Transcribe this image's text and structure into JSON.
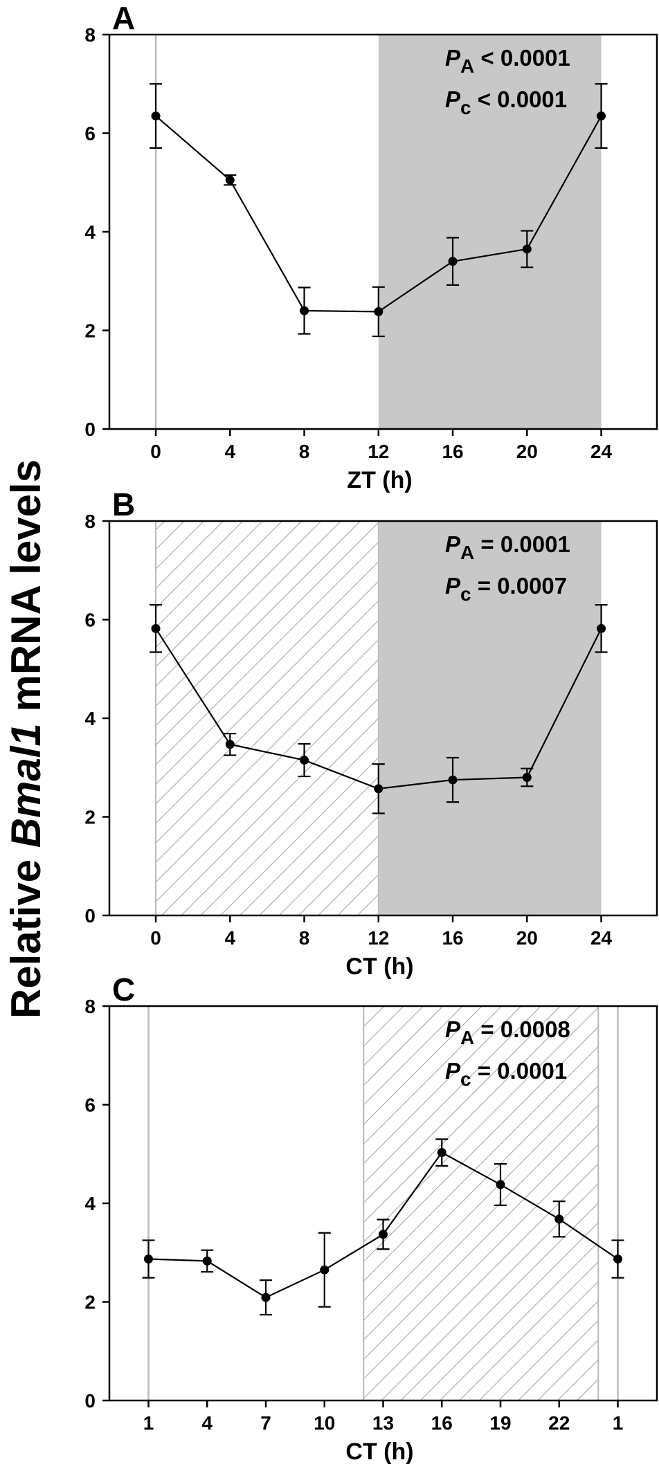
{
  "ylabel": {
    "pre": "Relative ",
    "italic": "Bmal1",
    "post": " mRNA levels"
  },
  "chart_data": [
    {
      "type": "line",
      "panel": "A",
      "xlabel": "ZT (h)",
      "x": [
        0,
        4,
        8,
        12,
        16,
        20,
        24
      ],
      "xtick_labels": [
        "0",
        "4",
        "8",
        "12",
        "16",
        "20",
        "24"
      ],
      "values": [
        6.35,
        5.05,
        2.4,
        2.38,
        3.4,
        3.65,
        6.35
      ],
      "errors": [
        0.65,
        0.1,
        0.47,
        0.5,
        0.48,
        0.37,
        0.65
      ],
      "ylim": [
        0,
        8
      ],
      "yticks": [
        0,
        2,
        4,
        6,
        8
      ],
      "xlim": [
        -2.5,
        27
      ],
      "shading": [
        {
          "from": 12,
          "to": 24,
          "style": "gray"
        }
      ],
      "vlines": [
        0
      ],
      "pvalues": [
        {
          "symbol": "P",
          "sub": "A",
          "text": " < 0.0001"
        },
        {
          "symbol": "P",
          "sub": "c",
          "text": " < 0.0001"
        }
      ]
    },
    {
      "type": "line",
      "panel": "B",
      "xlabel": "CT (h)",
      "x": [
        0,
        4,
        8,
        12,
        16,
        20,
        24
      ],
      "xtick_labels": [
        "0",
        "4",
        "8",
        "12",
        "16",
        "20",
        "24"
      ],
      "values": [
        5.82,
        3.47,
        3.15,
        2.57,
        2.75,
        2.8,
        5.82
      ],
      "errors": [
        0.48,
        0.22,
        0.33,
        0.5,
        0.45,
        0.18,
        0.48
      ],
      "ylim": [
        0,
        8
      ],
      "yticks": [
        0,
        2,
        4,
        6,
        8
      ],
      "xlim": [
        -2.5,
        27
      ],
      "shading": [
        {
          "from": 0,
          "to": 12,
          "style": "hatch"
        },
        {
          "from": 12,
          "to": 24,
          "style": "gray"
        }
      ],
      "vlines": [],
      "pvalues": [
        {
          "symbol": "P",
          "sub": "A",
          "text": " = 0.0001"
        },
        {
          "symbol": "P",
          "sub": "c",
          "text": " = 0.0007"
        }
      ]
    },
    {
      "type": "line",
      "panel": "C",
      "xlabel": "CT (h)",
      "x": [
        1,
        4,
        7,
        10,
        13,
        16,
        19,
        22,
        25
      ],
      "xtick_labels": [
        "1",
        "4",
        "7",
        "10",
        "13",
        "16",
        "19",
        "22",
        "1"
      ],
      "values": [
        2.87,
        2.83,
        2.09,
        2.65,
        3.37,
        5.03,
        4.38,
        3.68,
        2.87
      ],
      "errors": [
        0.38,
        0.22,
        0.35,
        0.75,
        0.3,
        0.27,
        0.42,
        0.36,
        0.38
      ],
      "ylim": [
        0,
        8
      ],
      "yticks": [
        0,
        2,
        4,
        6,
        8
      ],
      "xlim": [
        -1,
        27
      ],
      "shading": [
        {
          "from": 12,
          "to": 24,
          "style": "hatch"
        }
      ],
      "vlines": [
        1,
        25
      ],
      "pvalues": [
        {
          "symbol": "P",
          "sub": "A",
          "text": " = 0.0008"
        },
        {
          "symbol": "P",
          "sub": "c",
          "text": " = 0.0001"
        }
      ]
    }
  ]
}
